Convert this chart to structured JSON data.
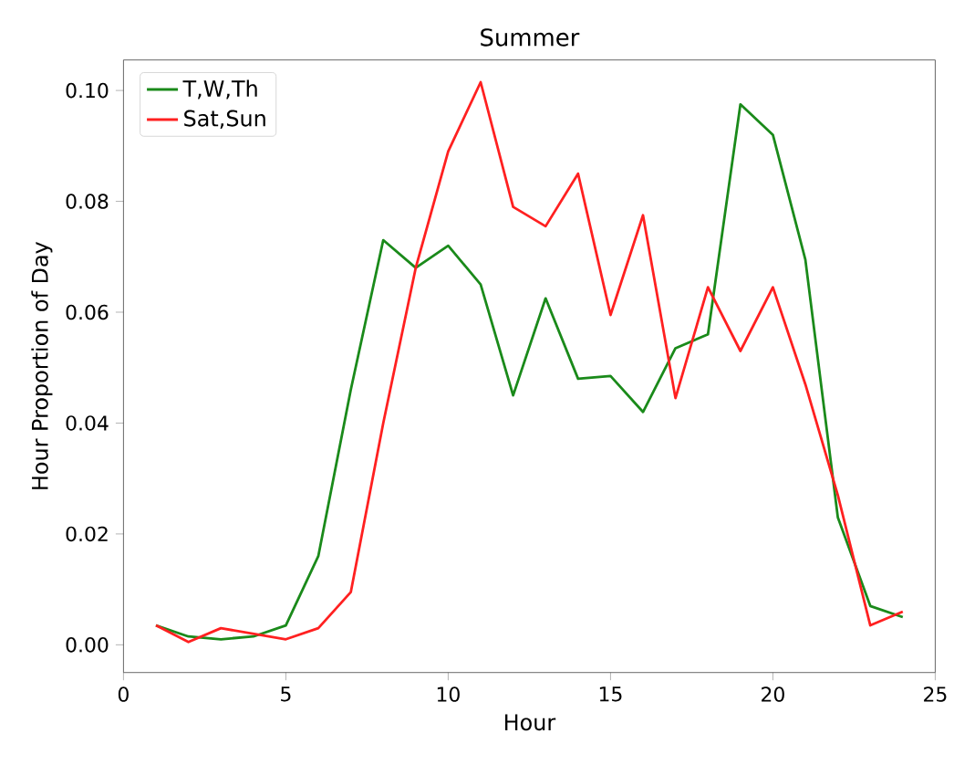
{
  "chart_data": {
    "type": "line",
    "title": "Summer",
    "xlabel": "Hour",
    "ylabel": "Hour Proportion of Day",
    "x": [
      1,
      2,
      3,
      4,
      5,
      6,
      7,
      8,
      9,
      10,
      11,
      12,
      13,
      14,
      15,
      16,
      17,
      18,
      19,
      20,
      21,
      22,
      23,
      24
    ],
    "series": [
      {
        "name": "T,W,Th",
        "color": "#1a8a1a",
        "values": [
          0.0035,
          0.0015,
          0.001,
          0.0015,
          0.0035,
          0.016,
          0.046,
          0.073,
          0.068,
          0.072,
          0.065,
          0.045,
          0.0625,
          0.048,
          0.0485,
          0.042,
          0.0535,
          0.056,
          0.0975,
          0.092,
          0.0695,
          0.023,
          0.007,
          0.005
        ]
      },
      {
        "name": "Sat,Sun",
        "color": "#ff2020",
        "values": [
          0.0035,
          0.0005,
          0.003,
          0.002,
          0.001,
          0.003,
          0.0095,
          0.04,
          0.068,
          0.089,
          0.1015,
          0.079,
          0.0755,
          0.085,
          0.0595,
          0.0775,
          0.0445,
          0.0645,
          0.053,
          0.0645,
          0.047,
          0.027,
          0.0035,
          0.006
        ]
      }
    ],
    "xlim": [
      0,
      25
    ],
    "xticks": [
      0,
      5,
      10,
      15,
      20,
      25
    ],
    "ylim": [
      -0.005,
      0.1055
    ],
    "yticks": [
      {
        "value": 0,
        "label": "0.00"
      },
      {
        "value": 0.02,
        "label": "0.02"
      },
      {
        "value": 0.04,
        "label": "0.04"
      },
      {
        "value": 0.06,
        "label": "0.06"
      },
      {
        "value": 0.08,
        "label": "0.08"
      },
      {
        "value": 0.1,
        "label": "0.10"
      }
    ],
    "legend": "top left",
    "grid": false,
    "marker": "none",
    "line_style": "solid"
  }
}
